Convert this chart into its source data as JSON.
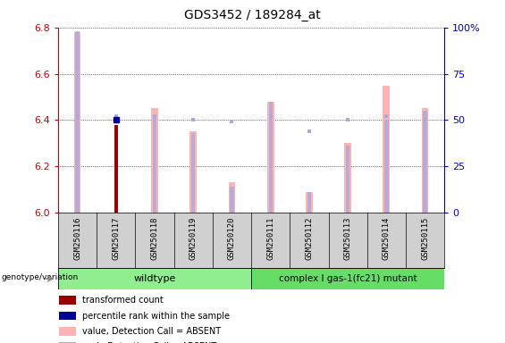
{
  "title": "GDS3452 / 189284_at",
  "samples": [
    "GSM250116",
    "GSM250117",
    "GSM250118",
    "GSM250119",
    "GSM250120",
    "GSM250111",
    "GSM250112",
    "GSM250113",
    "GSM250114",
    "GSM250115"
  ],
  "pink_values": [
    6.78,
    null,
    6.45,
    6.35,
    6.13,
    6.48,
    6.09,
    6.3,
    6.55,
    6.45
  ],
  "dark_red_values": [
    null,
    6.38,
    null,
    null,
    null,
    null,
    null,
    null,
    null,
    null
  ],
  "dark_blue_values": [
    null,
    6.4,
    null,
    null,
    null,
    null,
    null,
    null,
    null,
    null
  ],
  "pink_rank_pct": [
    98,
    null,
    52,
    43,
    14,
    60,
    11,
    36,
    50,
    55
  ],
  "blue_rank_pct": [
    52,
    52,
    52,
    50,
    49,
    52,
    44,
    50,
    52,
    50
  ],
  "ylim_left": [
    6.0,
    6.8
  ],
  "ylim_right": [
    0,
    100
  ],
  "yticks_left": [
    6.0,
    6.2,
    6.4,
    6.6,
    6.8
  ],
  "yticks_right": [
    0,
    25,
    50,
    75,
    100
  ],
  "ytick_labels_right": [
    "0",
    "25",
    "50",
    "75",
    "100%"
  ],
  "left_color": "#cc0000",
  "right_color": "#0000cc",
  "pink_bar_color": "#ffb3b3",
  "blue_sq_color": "#aaaadd",
  "dark_red_color": "#990000",
  "dark_blue_color": "#000099",
  "wildtype_color": "#90ee90",
  "mutant_color": "#66dd66",
  "bg_color": "#d0d0d0",
  "legend_items": [
    {
      "color": "#990000",
      "label": "transformed count"
    },
    {
      "color": "#000099",
      "label": "percentile rank within the sample"
    },
    {
      "color": "#ffb3b3",
      "label": "value, Detection Call = ABSENT"
    },
    {
      "color": "#aaaadd",
      "label": "rank, Detection Call = ABSENT"
    }
  ]
}
